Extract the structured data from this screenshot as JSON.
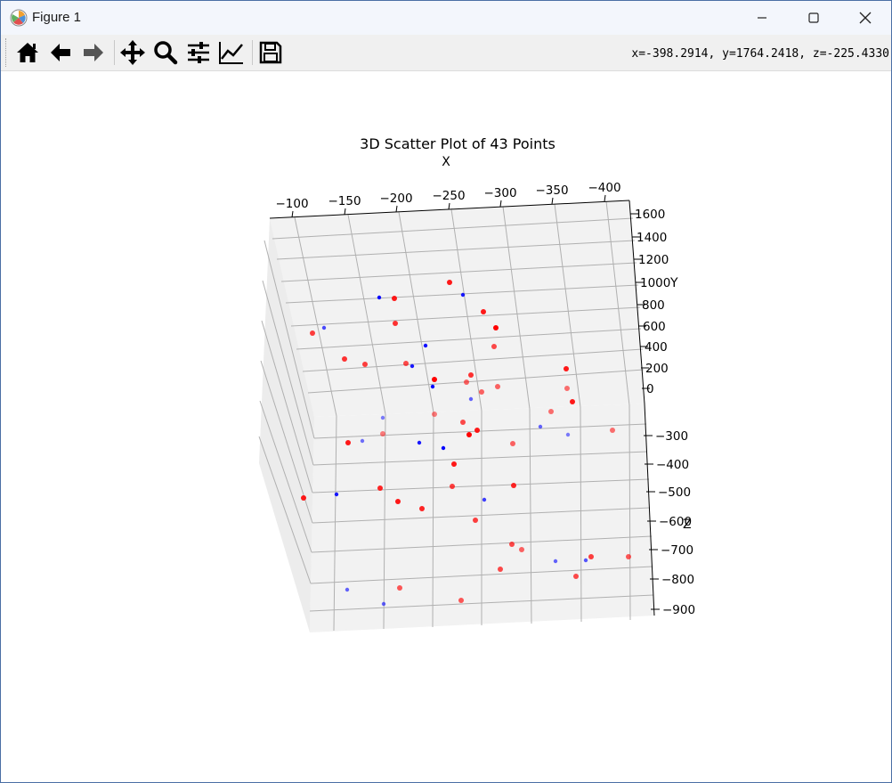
{
  "window": {
    "title": "Figure 1"
  },
  "toolbar": {
    "coords": "x=-398.2914, y=1764.2418, z=-225.4330",
    "tools": [
      "home-icon",
      "back-arrow-icon",
      "forward-arrow-icon",
      "pan-icon",
      "zoom-icon",
      "configure-subplots-icon",
      "edit-axis-icon",
      "save-icon"
    ]
  },
  "chart_data": {
    "type": "scatter",
    "title": "3D Scatter Plot of 43 Points",
    "xlabel": "X",
    "ylabel": "Y",
    "zlabel": "Z",
    "x_ticks": [
      "−100",
      "−150",
      "−200",
      "−250",
      "−300",
      "−350",
      "−400"
    ],
    "y_ticks": [
      "1600",
      "1400",
      "1200",
      "1000",
      "800",
      "600",
      "400",
      "200",
      "0"
    ],
    "z_ticks": [
      "−300",
      "−400",
      "−500",
      "−600",
      "−700",
      "−800",
      "−900"
    ],
    "colors": {
      "red": "#ff0000",
      "blue": "#0000ff"
    },
    "grid": true
  }
}
